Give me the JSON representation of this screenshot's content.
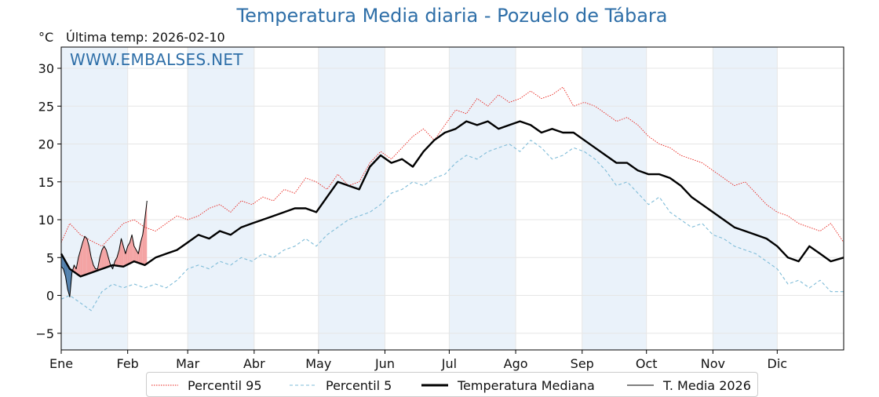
{
  "chart_data": {
    "type": "line",
    "title": "Temperatura Media diaria - Pozuelo de Tábara",
    "unit": "°C",
    "last_update": "Última temp: 2026-02-10",
    "watermark": "WWW.EMBALSES.NET",
    "ylim": [
      -7.2,
      32.8
    ],
    "yticks": [
      -5,
      0,
      5,
      10,
      15,
      20,
      25,
      30
    ],
    "ytick_labels": [
      "−5",
      "0",
      "5",
      "10",
      "15",
      "20",
      "25",
      "30"
    ],
    "months": [
      "Ene",
      "Feb",
      "Mar",
      "Abr",
      "May",
      "Jun",
      "Jul",
      "Ago",
      "Sep",
      "Oct",
      "Nov",
      "Dic"
    ],
    "x_unit": "day_of_year",
    "xlim": [
      1,
      366
    ],
    "grid": true,
    "shaded_months": [
      "Ene",
      "Mar",
      "May",
      "Jul",
      "Sep",
      "Nov"
    ],
    "legend_position": "bottom",
    "colors": {
      "title": "#2f6fa8",
      "p95": "#e8231c",
      "p5": "#7fbcd8",
      "median": "#000000",
      "current": "#000000",
      "above_fill": "#f4a3a3",
      "below_fill": "#4f7eab",
      "month_band": "#eaf2fa"
    },
    "series": [
      {
        "name": "Percentil 95",
        "style": "dotted-red",
        "x": [
          1,
          5,
          10,
          15,
          20,
          25,
          30,
          35,
          40,
          45,
          50,
          55,
          60,
          65,
          70,
          75,
          80,
          85,
          90,
          95,
          100,
          105,
          110,
          115,
          120,
          125,
          130,
          135,
          140,
          145,
          150,
          155,
          160,
          165,
          170,
          175,
          180,
          185,
          190,
          195,
          200,
          205,
          210,
          215,
          220,
          225,
          230,
          235,
          240,
          245,
          250,
          255,
          260,
          265,
          270,
          275,
          280,
          285,
          290,
          295,
          300,
          305,
          310,
          315,
          320,
          325,
          330,
          335,
          340,
          345,
          350,
          355,
          360,
          366
        ],
        "values": [
          7.0,
          9.5,
          8.0,
          7.2,
          6.5,
          8.0,
          9.5,
          10.0,
          9.0,
          8.5,
          9.5,
          10.5,
          10.0,
          10.5,
          11.5,
          12.0,
          11.0,
          12.5,
          12.0,
          13.0,
          12.5,
          14.0,
          13.5,
          15.5,
          15.0,
          14.0,
          16.0,
          14.5,
          15.0,
          17.5,
          19.0,
          18.0,
          19.5,
          21.0,
          22.0,
          20.5,
          22.5,
          24.5,
          24.0,
          26.0,
          25.0,
          26.5,
          25.5,
          26.0,
          27.0,
          26.0,
          26.5,
          27.5,
          25.0,
          25.5,
          25.0,
          24.0,
          23.0,
          23.5,
          22.5,
          21.0,
          20.0,
          19.5,
          18.5,
          18.0,
          17.5,
          16.5,
          15.5,
          14.5,
          15.0,
          13.5,
          12.0,
          11.0,
          10.5,
          9.5,
          9.0,
          8.5,
          9.5,
          7.0
        ]
      },
      {
        "name": "Percentil 5",
        "style": "dashed-lightblue",
        "x": [
          1,
          5,
          10,
          15,
          20,
          25,
          30,
          35,
          40,
          45,
          50,
          55,
          60,
          65,
          70,
          75,
          80,
          85,
          90,
          95,
          100,
          105,
          110,
          115,
          120,
          125,
          130,
          135,
          140,
          145,
          150,
          155,
          160,
          165,
          170,
          175,
          180,
          185,
          190,
          195,
          200,
          205,
          210,
          215,
          220,
          225,
          230,
          235,
          240,
          245,
          250,
          255,
          260,
          265,
          270,
          275,
          280,
          285,
          290,
          295,
          300,
          305,
          310,
          315,
          320,
          325,
          330,
          335,
          340,
          345,
          350,
          355,
          360,
          366
        ],
        "values": [
          -0.5,
          0.0,
          -1.0,
          -2.0,
          0.5,
          1.5,
          1.0,
          1.5,
          1.0,
          1.5,
          1.0,
          2.0,
          3.5,
          4.0,
          3.5,
          4.5,
          4.0,
          5.0,
          4.5,
          5.5,
          5.0,
          6.0,
          6.5,
          7.5,
          6.5,
          8.0,
          9.0,
          10.0,
          10.5,
          11.0,
          12.0,
          13.5,
          14.0,
          15.0,
          14.5,
          15.5,
          16.0,
          17.5,
          18.5,
          18.0,
          19.0,
          19.5,
          20.0,
          19.0,
          20.5,
          19.5,
          18.0,
          18.5,
          19.5,
          19.0,
          18.0,
          16.5,
          14.5,
          15.0,
          13.5,
          12.0,
          13.0,
          11.0,
          10.0,
          9.0,
          9.5,
          8.0,
          7.5,
          6.5,
          6.0,
          5.5,
          4.5,
          3.5,
          1.5,
          2.0,
          1.0,
          2.0,
          0.5,
          0.5
        ]
      },
      {
        "name": "Temperatura Mediana",
        "style": "thick-black",
        "x": [
          1,
          5,
          10,
          15,
          20,
          25,
          30,
          35,
          40,
          45,
          50,
          55,
          60,
          65,
          70,
          75,
          80,
          85,
          90,
          95,
          100,
          105,
          110,
          115,
          120,
          125,
          130,
          135,
          140,
          145,
          150,
          155,
          160,
          165,
          170,
          175,
          180,
          185,
          190,
          195,
          200,
          205,
          210,
          215,
          220,
          225,
          230,
          235,
          240,
          245,
          250,
          255,
          260,
          265,
          270,
          275,
          280,
          285,
          290,
          295,
          300,
          305,
          310,
          315,
          320,
          325,
          330,
          335,
          340,
          345,
          350,
          355,
          360,
          366
        ],
        "values": [
          5.5,
          3.5,
          2.5,
          3.0,
          3.5,
          4.0,
          3.8,
          4.5,
          4.0,
          5.0,
          5.5,
          6.0,
          7.0,
          8.0,
          7.5,
          8.5,
          8.0,
          9.0,
          9.5,
          10.0,
          10.5,
          11.0,
          11.5,
          11.5,
          11.0,
          13.0,
          15.0,
          14.5,
          14.0,
          17.0,
          18.5,
          17.5,
          18.0,
          17.0,
          19.0,
          20.5,
          21.5,
          22.0,
          23.0,
          22.5,
          23.0,
          22.0,
          22.5,
          23.0,
          22.5,
          21.5,
          22.0,
          21.5,
          21.5,
          20.5,
          19.5,
          18.5,
          17.5,
          17.5,
          16.5,
          16.0,
          16.0,
          15.5,
          14.5,
          13.0,
          12.0,
          11.0,
          10.0,
          9.0,
          8.5,
          8.0,
          7.5,
          6.5,
          5.0,
          4.5,
          6.5,
          5.5,
          4.5,
          5.0
        ]
      },
      {
        "name": "T. Media 2026",
        "style": "thin-black",
        "x": [
          1,
          2,
          3,
          4,
          5,
          6,
          7,
          8,
          9,
          10,
          11,
          12,
          13,
          14,
          15,
          16,
          17,
          18,
          19,
          20,
          21,
          22,
          23,
          24,
          25,
          26,
          27,
          28,
          29,
          30,
          31,
          32,
          33,
          34,
          35,
          36,
          37,
          38,
          39,
          40,
          41
        ],
        "values": [
          3.8,
          3.5,
          2.5,
          0.8,
          -0.2,
          3.0,
          4.0,
          3.5,
          5.0,
          6.0,
          7.0,
          7.8,
          7.5,
          6.5,
          5.0,
          4.0,
          3.5,
          3.5,
          5.0,
          6.0,
          6.5,
          6.0,
          5.0,
          4.0,
          3.5,
          4.5,
          5.0,
          6.0,
          7.5,
          6.5,
          5.5,
          6.5,
          7.0,
          8.0,
          6.5,
          6.0,
          5.5,
          7.0,
          8.0,
          10.0,
          12.5
        ]
      }
    ]
  },
  "legend": {
    "items": [
      {
        "label": "Percentil 95"
      },
      {
        "label": "Percentil 5"
      },
      {
        "label": "Temperatura Mediana"
      },
      {
        "label": "T. Media 2026"
      }
    ]
  }
}
